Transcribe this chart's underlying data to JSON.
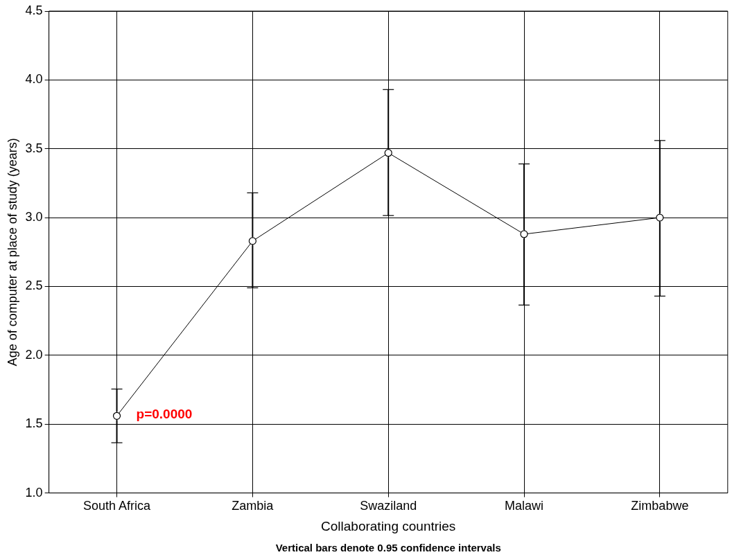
{
  "chart_data": {
    "type": "line",
    "xlabel": "Collaborating countries",
    "ylabel": "Age of computer at place of study (years)",
    "categories": [
      "South Africa",
      "Zambia",
      "Swaziland",
      "Malawi",
      "Zimbabwe"
    ],
    "values": [
      1.56,
      2.83,
      3.47,
      2.88,
      3.0
    ],
    "color": "#000000",
    "errors": [
      [
        1.365,
        1.755
      ],
      [
        2.49,
        3.18
      ],
      [
        3.015,
        3.93
      ],
      [
        2.365,
        3.39
      ],
      [
        2.43,
        3.56
      ]
    ],
    "ylim": [
      1.0,
      4.5
    ],
    "yticks": [
      {
        "value": 1.0,
        "label": "1.0"
      },
      {
        "value": 1.5,
        "label": "1.5"
      },
      {
        "value": 2.0,
        "label": "2.0"
      },
      {
        "value": 2.5,
        "label": "2.5"
      },
      {
        "value": 3.0,
        "label": "3.0"
      },
      {
        "value": 3.5,
        "label": "3.5"
      },
      {
        "value": 4.0,
        "label": "4.0"
      },
      {
        "value": 4.5,
        "label": "4.5"
      }
    ],
    "grid": true,
    "legend": false,
    "marker": "circle",
    "line_style": "solid",
    "annotations": [
      {
        "text": "p=0.0000",
        "x": "South Africa",
        "y": 1.56
      },
      "Vertical bars denote 0.95 confidence intervals"
    ]
  }
}
